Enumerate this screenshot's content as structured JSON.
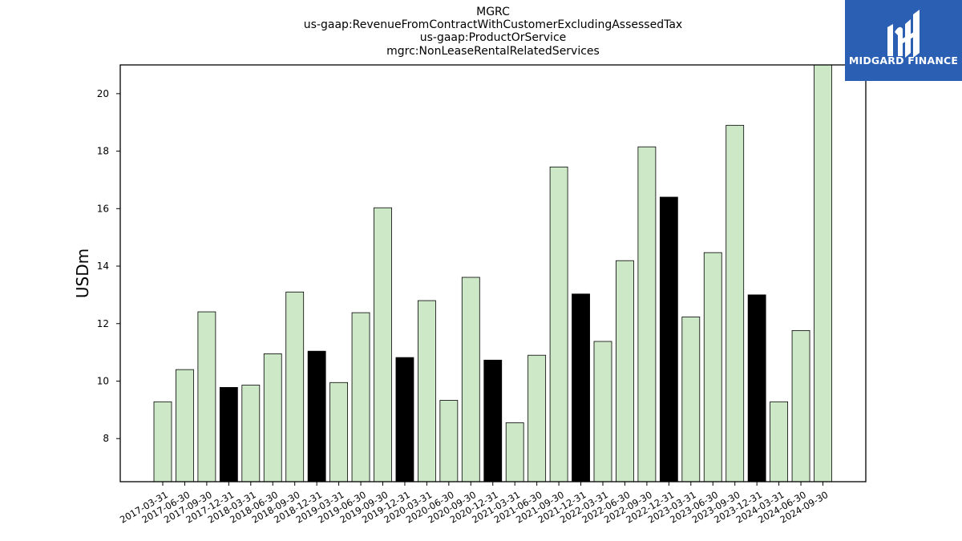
{
  "titles": [
    "MGRC",
    "us-gaap:RevenueFromContractWithCustomerExcludingAssessedTax",
    "us-gaap:ProductOrService",
    "mgrc:NonLeaseRentalRelatedServices"
  ],
  "logo": {
    "text": "MIDGARD FINANCE",
    "icon": "midgard-logo-icon",
    "bg_color": "#2b5fb4"
  },
  "colors": {
    "q4_bar": "#000000",
    "other_bar": "#cce8c6",
    "bar_edge": "#000000"
  },
  "chart_data": {
    "type": "bar",
    "title": "MGRC",
    "ylabel": "USDm",
    "xlabel": "",
    "ylim": [
      6.5,
      21
    ],
    "yticks": [
      8,
      10,
      12,
      14,
      16,
      18,
      20
    ],
    "grid": false,
    "categories": [
      "2017-03-31",
      "2017-06-30",
      "2017-09-30",
      "2017-12-31",
      "2018-03-31",
      "2018-06-30",
      "2018-09-30",
      "2018-12-31",
      "2019-03-31",
      "2019-06-30",
      "2019-09-30",
      "2019-12-31",
      "2020-03-31",
      "2020-06-30",
      "2020-09-30",
      "2020-12-31",
      "2021-03-31",
      "2021-06-30",
      "2021-09-30",
      "2021-12-31",
      "2022-03-31",
      "2022-06-30",
      "2022-09-30",
      "2022-12-31",
      "2023-03-31",
      "2023-06-30",
      "2023-09-30",
      "2023-12-31",
      "2024-03-31",
      "2024-06-30",
      "2024-09-30"
    ],
    "values": [
      9.28,
      10.4,
      12.41,
      9.78,
      9.86,
      10.95,
      13.1,
      11.04,
      9.95,
      12.38,
      16.03,
      10.82,
      12.8,
      9.33,
      13.61,
      10.73,
      8.55,
      10.9,
      17.45,
      13.03,
      11.38,
      14.19,
      18.15,
      16.4,
      12.23,
      14.47,
      18.9,
      13.0,
      9.28,
      11.76,
      21.0
    ]
  }
}
